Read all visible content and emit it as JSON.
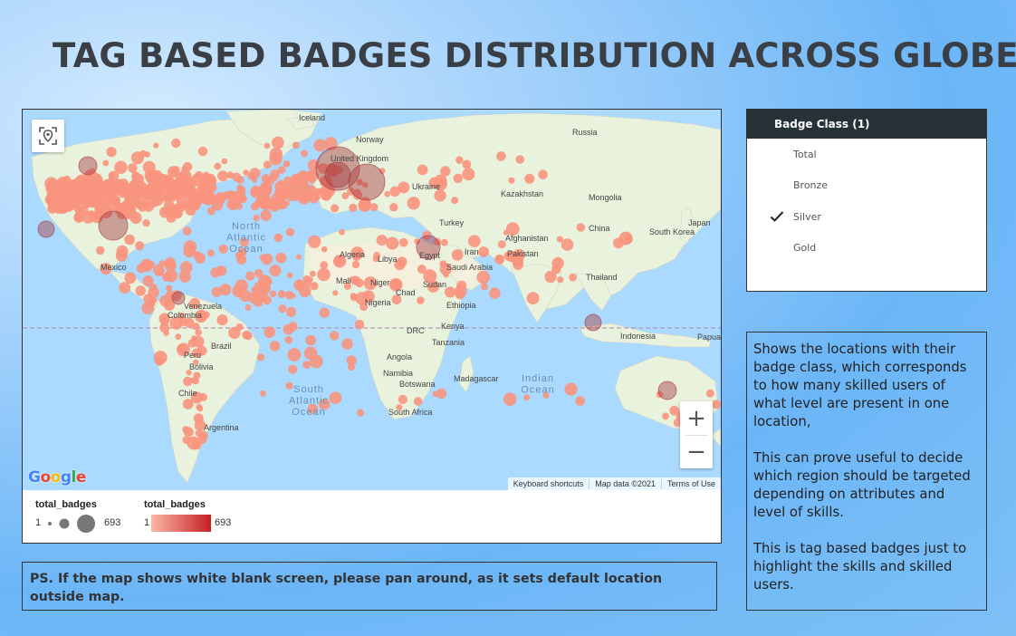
{
  "title": "TAG BASED BADGES DISTRIBUTION ACROSS GLOBE",
  "map": {
    "country_labels": [
      "Iceland",
      "Norway",
      "Russia",
      "Kazakhstan",
      "Mongolia",
      "China",
      "Japan",
      "South Korea",
      "Turkey",
      "Afghanistan",
      "Iran",
      "Pakistan",
      "Thailand",
      "Indonesia",
      "Papua New Guinea",
      "Algeria",
      "Libya",
      "Egypt",
      "Saudi Arabia",
      "Mali",
      "Niger",
      "Chad",
      "Sudan",
      "Nigeria",
      "Ethiopia",
      "Kenya",
      "DRC",
      "Tanzania",
      "Angola",
      "Namibia",
      "Botswana",
      "Madagascar",
      "South Africa",
      "Mexico",
      "Venezuela",
      "Colombia",
      "Brazil",
      "Peru",
      "Bolivia",
      "Chile",
      "Argentina",
      "United Kingdom",
      "Ukraine"
    ],
    "ocean_labels": {
      "north_atlantic": [
        "North",
        "Atlantic",
        "Ocean"
      ],
      "south_atlantic": [
        "South",
        "Atlantic",
        "Ocean"
      ],
      "indian": [
        "Indian",
        "Ocean"
      ]
    },
    "google_logo": "Google",
    "attribution": [
      "Keyboard shortcuts",
      "Map data ©2021",
      "Terms of Use"
    ],
    "zoom_in": "+",
    "zoom_out": "−",
    "bubble_color": "#f8937e",
    "large_bubble_color": "#a33a40"
  },
  "legend": {
    "size_title": "total_badges",
    "size_min": "1",
    "size_max": "693",
    "color_title": "total_badges",
    "color_min": "1",
    "color_max": "693",
    "gradient_start": "#fbb7a5",
    "gradient_end": "#c71f25"
  },
  "filter": {
    "header": "Badge Class (1)",
    "options": [
      {
        "label": "Total",
        "checked": false
      },
      {
        "label": "Bronze",
        "checked": false
      },
      {
        "label": "Silver",
        "checked": true
      },
      {
        "label": "Gold",
        "checked": false
      }
    ]
  },
  "description": [
    "Shows the locations with their badge class, which corresponds to how many skilled users of what level are present in one location,",
    "This can prove useful to decide which region should be targeted depending on attributes and level of skills.",
    "This is tag based badges just to highlight the skills and skilled users."
  ],
  "ps_note": "PS. If the map shows white blank screen, please pan around, as it sets default location outside map."
}
